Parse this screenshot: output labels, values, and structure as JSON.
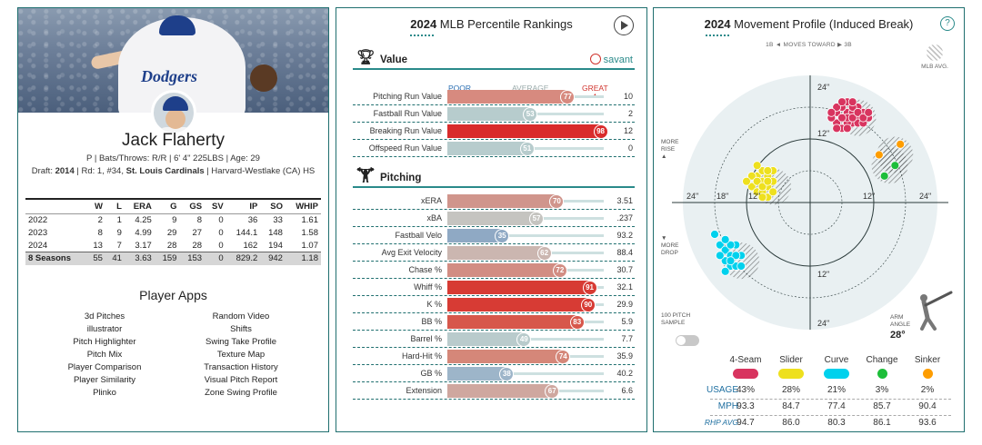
{
  "player": {
    "name": "Jack Flaherty",
    "info": "P | Bats/Throws: R/R | 6' 4\" 225LBS | Age: 29",
    "draft_prefix": "Draft: ",
    "draft_year": "2014",
    "draft_mid": " | Rd: 1, #34, ",
    "draft_team": "St. Louis Cardinals",
    "draft_school": " | Harvard-Westlake (CA) HS",
    "jersey_text": "Dodgers"
  },
  "stats": {
    "headers": [
      "",
      "W",
      "L",
      "ERA",
      "G",
      "GS",
      "SV",
      "IP",
      "SO",
      "WHIP"
    ],
    "rows": [
      [
        "2022",
        "2",
        "1",
        "4.25",
        "9",
        "8",
        "0",
        "36",
        "33",
        "1.61"
      ],
      [
        "2023",
        "8",
        "9",
        "4.99",
        "29",
        "27",
        "0",
        "144.1",
        "148",
        "1.58"
      ],
      [
        "2024",
        "13",
        "7",
        "3.17",
        "28",
        "28",
        "0",
        "162",
        "194",
        "1.07"
      ],
      [
        "8 Seasons",
        "55",
        "41",
        "3.63",
        "159",
        "153",
        "0",
        "829.2",
        "942",
        "1.18"
      ]
    ]
  },
  "apps": {
    "title": "Player Apps",
    "left": [
      "3d Pitches",
      "illustrator",
      "Pitch Highlighter",
      "Pitch Mix",
      "Player Comparison",
      "Player Similarity",
      "Plinko"
    ],
    "right": [
      "Random Video",
      "Shifts",
      "Swing Take Profile",
      "Texture Map",
      "Transaction History",
      "Visual Pitch Report",
      "Zone Swing Profile"
    ]
  },
  "rankings": {
    "title_year": "2024",
    "title_rest": " MLB Percentile Rankings",
    "scale": {
      "poor": "POOR",
      "average": "AVERAGE",
      "great": "GREAT"
    },
    "savant": "savant",
    "value_section": "Value",
    "pitching_section": "Pitching",
    "value_metrics": [
      {
        "label": "Pitching Run Value",
        "pct": 77,
        "val": "10",
        "color": "#d78a7f"
      },
      {
        "label": "Fastball Run Value",
        "pct": 53,
        "val": "2",
        "color": "#b7cccd"
      },
      {
        "label": "Breaking Run Value",
        "pct": 98,
        "val": "12",
        "color": "#d92b2b"
      },
      {
        "label": "Offspeed Run Value",
        "pct": 51,
        "val": "0",
        "color": "#b7cccd"
      }
    ],
    "pitching_metrics": [
      {
        "label": "xERA",
        "pct": 70,
        "val": "3.51",
        "color": "#d0958c"
      },
      {
        "label": "xBA",
        "pct": 57,
        "val": ".237",
        "color": "#c5c4c0"
      },
      {
        "label": "Fastball Velo",
        "pct": 35,
        "val": "93.2",
        "color": "#8fa9c4"
      },
      {
        "label": "Avg Exit Velocity",
        "pct": 62,
        "val": "88.4",
        "color": "#cbb6b0"
      },
      {
        "label": "Chase %",
        "pct": 72,
        "val": "30.7",
        "color": "#d28d83"
      },
      {
        "label": "Whiff %",
        "pct": 91,
        "val": "32.1",
        "color": "#d73b34"
      },
      {
        "label": "K %",
        "pct": 90,
        "val": "29.9",
        "color": "#d73b34"
      },
      {
        "label": "BB %",
        "pct": 83,
        "val": "5.9",
        "color": "#d7574b"
      },
      {
        "label": "Barrel %",
        "pct": 49,
        "val": "7.7",
        "color": "#b9cbcc"
      },
      {
        "label": "Hard-Hit %",
        "pct": 74,
        "val": "35.9",
        "color": "#d58779"
      },
      {
        "label": "GB %",
        "pct": 38,
        "val": "40.2",
        "color": "#9db5c9"
      },
      {
        "label": "Extension",
        "pct": 67,
        "val": "6.6",
        "color": "#cfa79f"
      }
    ]
  },
  "movement": {
    "title_year": "2024",
    "title_rest": " Movement Profile (Induced Break)",
    "moves_toward": "1B ◄ MOVES TOWARD ▶ 3B",
    "mlb_avg": "MLB AVG.",
    "more_rise": "MORE RISE",
    "more_drop": "MORE DROP",
    "sample": "100 PITCH SAMPLE",
    "arm_angle_label": "ARM ANGLE",
    "arm_angle": "28°",
    "ring_labels": {
      "top_outer": "24\"",
      "top_inner": "12\"",
      "bottom_inner": "12\"",
      "bottom_outer": "24\"",
      "left_outer": "24\"",
      "left_mid": "18\"",
      "left_inner": "12\"",
      "right_inner": "12\"",
      "right_outer": "24\""
    },
    "row_labels": {
      "usage": "USAGE",
      "mph": "MPH",
      "rhp": "RHP AVG"
    },
    "pitches": [
      {
        "name": "4-Seam",
        "color": "#d8345f",
        "usage": "43%",
        "mph": "93.3",
        "rhp": "94.7",
        "shape": "pill"
      },
      {
        "name": "Slider",
        "color": "#eee01e",
        "usage": "28%",
        "mph": "84.7",
        "rhp": "86.0",
        "shape": "pill"
      },
      {
        "name": "Curve",
        "color": "#00d1ed",
        "usage": "21%",
        "mph": "77.4",
        "rhp": "80.3",
        "shape": "pill"
      },
      {
        "name": "Change",
        "color": "#1dbe3a",
        "usage": "3%",
        "mph": "85.7",
        "rhp": "86.1",
        "shape": "dot"
      },
      {
        "name": "Sinker",
        "color": "#fe9d00",
        "usage": "2%",
        "mph": "90.4",
        "rhp": "93.6",
        "shape": "dot"
      }
    ],
    "chart_data": {
      "type": "scatter",
      "xlabel": "",
      "ylabel": "",
      "xlim": [
        -24,
        24
      ],
      "ylim": [
        -24,
        24
      ],
      "series": [
        {
          "name": "4-Seam",
          "color": "#d8345f",
          "points": [
            [
              5,
              17
            ],
            [
              6,
              16
            ],
            [
              7,
              17
            ],
            [
              8,
              15
            ],
            [
              9,
              16
            ],
            [
              10,
              17
            ],
            [
              5,
              15
            ],
            [
              6,
              18
            ],
            [
              7,
              19
            ],
            [
              8,
              17
            ],
            [
              9,
              18
            ],
            [
              4,
              16
            ],
            [
              6,
              14
            ],
            [
              7,
              15
            ],
            [
              8,
              18
            ],
            [
              9,
              15
            ],
            [
              10,
              15
            ],
            [
              11,
              16
            ],
            [
              5,
              18
            ],
            [
              7,
              16
            ],
            [
              8,
              16
            ],
            [
              6,
              16
            ],
            [
              4,
              17
            ],
            [
              7,
              14
            ],
            [
              9,
              17
            ],
            [
              10,
              16
            ],
            [
              6,
              19
            ],
            [
              8,
              19
            ],
            [
              5,
              14
            ],
            [
              11,
              17
            ]
          ]
        },
        {
          "name": "Slider",
          "color": "#eee01e",
          "points": [
            [
              -10,
              5
            ],
            [
              -9,
              4
            ],
            [
              -8,
              5
            ],
            [
              -11,
              3
            ],
            [
              -9,
              6
            ],
            [
              -8,
              3
            ],
            [
              -7,
              4
            ],
            [
              -10,
              2
            ],
            [
              -9,
              2
            ],
            [
              -8,
              1
            ],
            [
              -11,
              5
            ],
            [
              -7,
              6
            ],
            [
              -10,
              4
            ],
            [
              -9,
              3
            ],
            [
              -8,
              4
            ],
            [
              -12,
              4
            ],
            [
              -7,
              2
            ],
            [
              -9,
              1
            ],
            [
              -10,
              7
            ],
            [
              -8,
              6
            ]
          ]
        },
        {
          "name": "Curve",
          "color": "#00d1ed",
          "points": [
            [
              -17,
              -8
            ],
            [
              -16,
              -9
            ],
            [
              -15,
              -10
            ],
            [
              -14,
              -8
            ],
            [
              -16,
              -11
            ],
            [
              -15,
              -12
            ],
            [
              -13,
              -10
            ],
            [
              -14,
              -12
            ],
            [
              -17,
              -10
            ],
            [
              -16,
              -13
            ],
            [
              -15,
              -8
            ],
            [
              -13,
              -12
            ],
            [
              -18,
              -6
            ],
            [
              -16,
              -7
            ],
            [
              -14,
              -10
            ],
            [
              -15,
              -11
            ]
          ]
        },
        {
          "name": "Change",
          "color": "#1dbe3a",
          "points": [
            [
              14,
              5
            ],
            [
              16,
              7
            ]
          ]
        },
        {
          "name": "Sinker",
          "color": "#fe9d00",
          "points": [
            [
              13,
              9
            ],
            [
              17,
              11
            ]
          ]
        }
      ],
      "mlb_avg": [
        {
          "name": "4-Seam",
          "cx": 9,
          "cy": 16
        },
        {
          "name": "Slider",
          "cx": -7,
          "cy": 3
        },
        {
          "name": "Curve",
          "cx": -13,
          "cy": -11
        },
        {
          "name": "Change",
          "cx": 15,
          "cy": 7
        },
        {
          "name": "Sinker",
          "cx": 16,
          "cy": 9
        }
      ]
    }
  }
}
